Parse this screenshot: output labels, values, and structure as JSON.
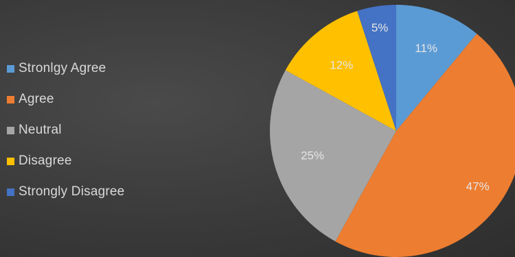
{
  "chart_data": {
    "type": "pie",
    "categories": [
      "Stronlgy Agree",
      "Agree",
      "Neutral",
      "Disagree",
      "Strongly Disagree"
    ],
    "values": [
      11,
      47,
      25,
      12,
      5
    ],
    "data_labels": [
      "11%",
      "47%",
      "25%",
      "12%",
      "5%"
    ],
    "colors": [
      "#5b9bd5",
      "#ed7d31",
      "#a5a5a5",
      "#ffc000",
      "#4472c4"
    ],
    "legend_position": "left",
    "start_angle_deg": 0,
    "direction": "clockwise"
  }
}
